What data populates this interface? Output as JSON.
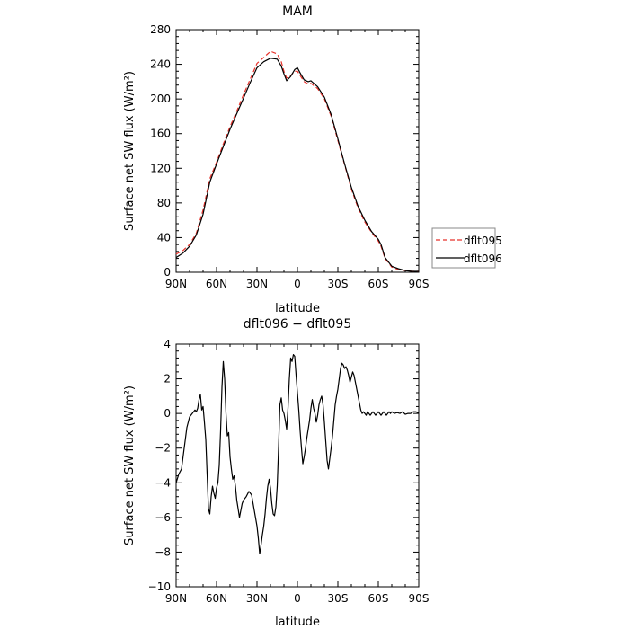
{
  "chart_data": [
    {
      "type": "line",
      "title": "MAM",
      "xlabel": "latitude",
      "ylabel": "Surface net SW flux (W/m²)",
      "ylim": [
        0,
        280
      ],
      "xlim": [
        90,
        -90
      ],
      "xticks": [
        90,
        60,
        30,
        0,
        -30,
        -60,
        -90
      ],
      "xtick_labels": [
        "90N",
        "60N",
        "30N",
        "0",
        "30S",
        "60S",
        "90S"
      ],
      "yticks": [
        0,
        40,
        80,
        120,
        160,
        200,
        240,
        280
      ],
      "ytick_labels": [
        "0",
        "40",
        "80",
        "120",
        "160",
        "200",
        "240",
        "280"
      ],
      "legend": {
        "placement": "right",
        "entries": [
          "dflt095",
          "dflt096"
        ]
      },
      "series": [
        {
          "name": "dflt095",
          "color": "#e8312a",
          "dash": "dashed",
          "x": [
            90,
            85,
            80,
            75,
            70,
            65,
            60,
            55,
            50,
            45,
            40,
            35,
            30,
            25,
            20,
            15,
            12,
            10,
            8,
            5,
            2,
            0,
            -2,
            -5,
            -8,
            -10,
            -15,
            -20,
            -25,
            -30,
            -35,
            -40,
            -45,
            -50,
            -55,
            -60,
            -62,
            -65,
            -70,
            -75,
            -80,
            -85,
            -90
          ],
          "y": [
            21,
            25,
            32,
            45,
            72,
            108,
            127,
            148,
            168,
            186,
            205,
            223,
            241,
            248,
            255,
            252,
            243,
            232,
            224,
            227,
            232,
            232,
            227,
            220,
            217,
            218,
            212,
            200,
            180,
            152,
            124,
            96,
            74,
            58,
            46,
            36,
            30,
            16,
            6,
            3,
            2,
            1,
            1
          ]
        },
        {
          "name": "dflt096",
          "color": "#000000",
          "dash": "solid",
          "x": [
            90,
            85,
            80,
            75,
            70,
            65,
            60,
            55,
            50,
            45,
            40,
            35,
            30,
            25,
            20,
            15,
            12,
            10,
            8,
            5,
            2,
            0,
            -2,
            -5,
            -8,
            -10,
            -15,
            -20,
            -25,
            -30,
            -35,
            -40,
            -45,
            -50,
            -55,
            -60,
            -62,
            -65,
            -70,
            -75,
            -80,
            -85,
            -90
          ],
          "y": [
            17,
            22,
            30,
            43,
            67,
            104,
            125,
            145,
            165,
            183,
            201,
            219,
            236,
            243,
            247,
            246,
            238,
            229,
            221,
            226,
            234,
            236,
            230,
            222,
            220,
            221,
            214,
            202,
            182,
            154,
            125,
            98,
            76,
            60,
            47,
            38,
            32,
            17,
            7,
            4,
            2,
            1,
            1
          ]
        }
      ]
    },
    {
      "type": "line",
      "title": "dflt096 − dflt095",
      "xlabel": "latitude",
      "ylabel": "Surface net SW flux (W/m²)",
      "ylim": [
        -10,
        4
      ],
      "xlim": [
        90,
        -90
      ],
      "xticks": [
        90,
        60,
        30,
        0,
        -30,
        -60,
        -90
      ],
      "xtick_labels": [
        "90N",
        "60N",
        "30N",
        "0",
        "30S",
        "60S",
        "90S"
      ],
      "yticks": [
        -10,
        -8,
        -6,
        -4,
        -2,
        0,
        2,
        4
      ],
      "ytick_labels": [
        "−10",
        "−8",
        "−6",
        "−4",
        "−2",
        "0",
        "2",
        "4"
      ],
      "series": [
        {
          "color": "#000000",
          "dash": "solid",
          "x": [
            90,
            88,
            86,
            84,
            82,
            80,
            78,
            76,
            75,
            74,
            73,
            72,
            71,
            70,
            69,
            68,
            67,
            66,
            65,
            64,
            63,
            62,
            61,
            60,
            59,
            58,
            57,
            56,
            55,
            54,
            53,
            52,
            51,
            50,
            49,
            48,
            47,
            46,
            45,
            44,
            43,
            42,
            41,
            40,
            38,
            36,
            34,
            32,
            30,
            29,
            28,
            27,
            26,
            25,
            24,
            23,
            22,
            21,
            20,
            19,
            18,
            17,
            16,
            15,
            14,
            13,
            12,
            11,
            10,
            9,
            8,
            7,
            6,
            5,
            4,
            3,
            2,
            1,
            0,
            -1,
            -2,
            -3,
            -4,
            -5,
            -6,
            -7,
            -8,
            -9,
            -10,
            -11,
            -12,
            -13,
            -14,
            -15,
            -16,
            -17,
            -18,
            -19,
            -20,
            -21,
            -22,
            -23,
            -24,
            -25,
            -26,
            -27,
            -28,
            -29,
            -30,
            -31,
            -32,
            -33,
            -34,
            -35,
            -36,
            -37,
            -38,
            -39,
            -40,
            -41,
            -42,
            -43,
            -44,
            -45,
            -46,
            -47,
            -48,
            -49,
            -50,
            -51,
            -52,
            -53,
            -54,
            -55,
            -56,
            -57,
            -58,
            -59,
            -60,
            -61,
            -62,
            -63,
            -64,
            -65,
            -66,
            -67,
            -68,
            -69,
            -70,
            -72,
            -74,
            -76,
            -78,
            -80,
            -82,
            -84,
            -86,
            -88,
            -90
          ],
          "y": [
            -4.0,
            -3.5,
            -3.2,
            -2.0,
            -0.8,
            -0.2,
            0.0,
            0.2,
            0.1,
            0.3,
            0.8,
            1.1,
            0.2,
            0.4,
            -0.5,
            -1.5,
            -3.5,
            -5.5,
            -5.8,
            -4.8,
            -4.2,
            -4.6,
            -4.9,
            -4.3,
            -4.0,
            -3.0,
            -1.0,
            1.5,
            3.0,
            2.0,
            0.0,
            -1.3,
            -1.1,
            -2.5,
            -3.2,
            -3.8,
            -3.6,
            -4.2,
            -5.0,
            -5.5,
            -6.0,
            -5.6,
            -5.2,
            -5.0,
            -4.8,
            -4.5,
            -4.7,
            -5.6,
            -6.5,
            -7.2,
            -8.1,
            -7.6,
            -7.0,
            -6.5,
            -5.8,
            -4.9,
            -4.2,
            -3.8,
            -4.3,
            -5.2,
            -5.8,
            -5.9,
            -5.4,
            -4.2,
            -2.0,
            0.5,
            0.9,
            0.2,
            0.0,
            -0.4,
            -0.9,
            0.3,
            2.0,
            3.2,
            3.0,
            3.4,
            3.3,
            2.2,
            1.2,
            0.2,
            -1.0,
            -2.0,
            -2.9,
            -2.5,
            -2.0,
            -1.4,
            -0.9,
            -0.4,
            0.3,
            0.8,
            0.3,
            0.0,
            -0.5,
            -0.1,
            0.5,
            0.8,
            1.0,
            0.5,
            -0.5,
            -1.6,
            -2.7,
            -3.2,
            -2.6,
            -2.0,
            -1.3,
            -0.4,
            0.5,
            1.0,
            1.4,
            2.0,
            2.6,
            2.9,
            2.8,
            2.6,
            2.7,
            2.5,
            2.2,
            1.8,
            2.1,
            2.4,
            2.2,
            1.8,
            1.4,
            1.0,
            0.6,
            0.2,
            0.0,
            0.1,
            0.0,
            -0.1,
            0.1,
            0.0,
            -0.1,
            0.0,
            0.1,
            0.0,
            -0.1,
            0.0,
            0.1,
            0.0,
            -0.1,
            0.0,
            0.1,
            0.0,
            -0.1,
            0.0,
            0.1,
            0.0,
            0.1,
            0.0,
            0.05,
            0.0,
            0.1,
            -0.05,
            0.0,
            0.0,
            0.1,
            0.1,
            0.0
          ]
        }
      ]
    }
  ]
}
